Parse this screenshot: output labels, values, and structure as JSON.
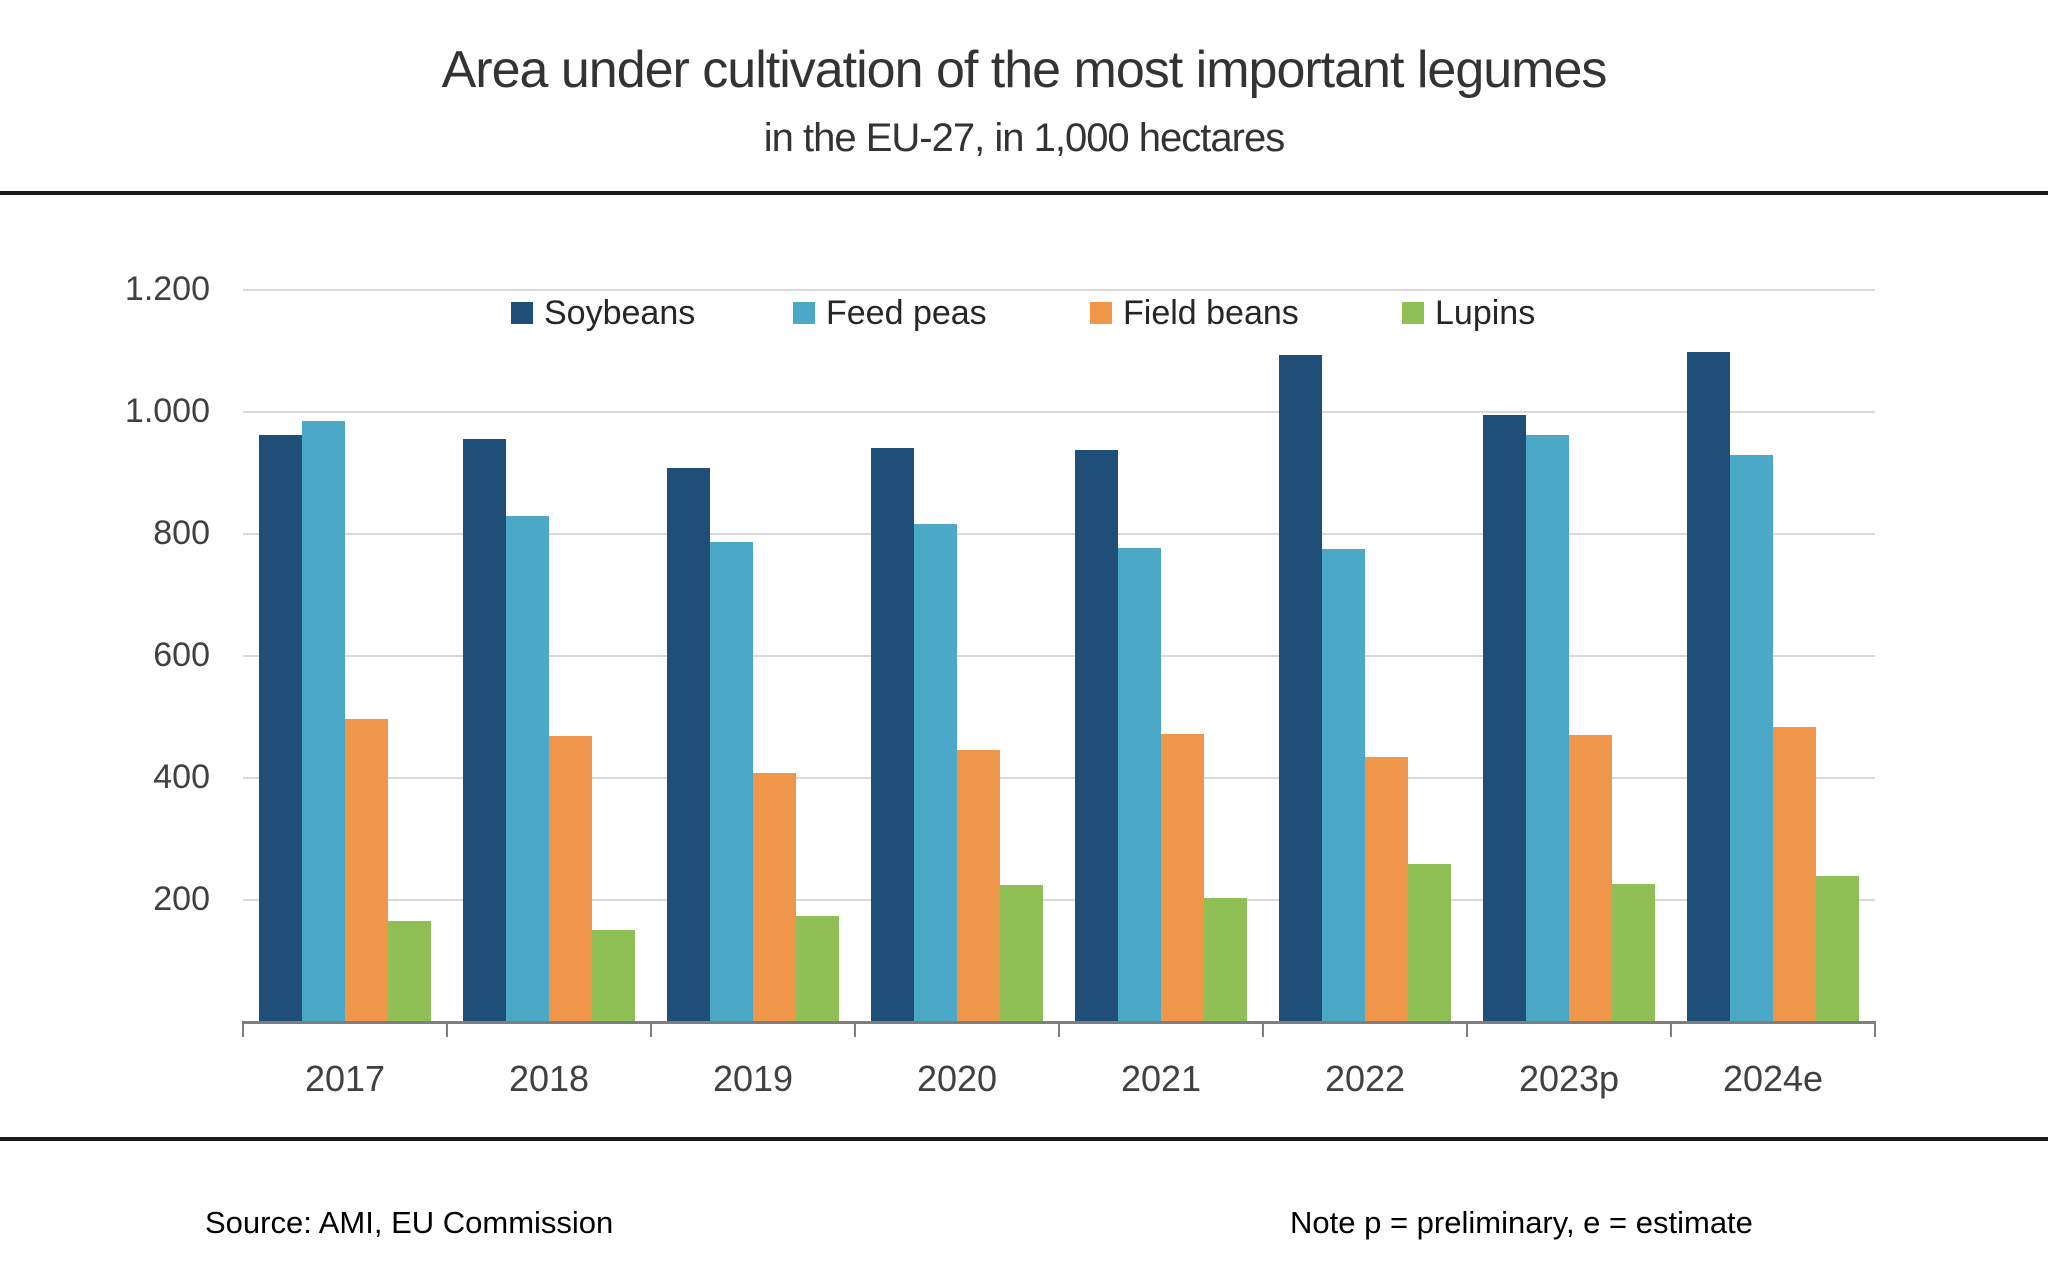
{
  "title": "Area under cultivation of the most important legumes",
  "subtitle": "in the EU-27, in 1,000 hectares",
  "footer": {
    "source": "Source: AMI, EU Commission",
    "note": "Note p = preliminary, e = estimate"
  },
  "chart_data": {
    "type": "bar",
    "title": "Area under cultivation of the most important legumes",
    "subtitle": "in the EU-27, in 1,000 hectares",
    "unit": "1,000 hectares",
    "categories": [
      "2017",
      "2018",
      "2019",
      "2020",
      "2021",
      "2022",
      "2023p",
      "2024e"
    ],
    "series": [
      {
        "name": "Soybeans",
        "color": "#1F4E79",
        "values": [
          962,
          955,
          908,
          941,
          937,
          1094,
          995,
          1098
        ]
      },
      {
        "name": "Feed peas",
        "color": "#4BA9C7",
        "values": [
          986,
          829,
          787,
          816,
          777,
          775,
          963,
          930
        ]
      },
      {
        "name": "Field beans",
        "color": "#F0964B",
        "values": [
          497,
          469,
          409,
          446,
          472,
          435,
          471,
          484
        ]
      },
      {
        "name": "Lupins",
        "color": "#90BF55",
        "values": [
          165,
          151,
          174,
          225,
          204,
          259,
          226,
          239
        ]
      }
    ],
    "xlabel": "",
    "ylabel": "",
    "ylim": [
      0,
      1200
    ],
    "ytick_values": [
      200,
      400,
      600,
      800,
      1000,
      1200
    ],
    "ytick_labels": [
      "200",
      "400",
      "600",
      "800",
      "1.000",
      "1.200"
    ],
    "grid": true,
    "legend_position": "top"
  }
}
